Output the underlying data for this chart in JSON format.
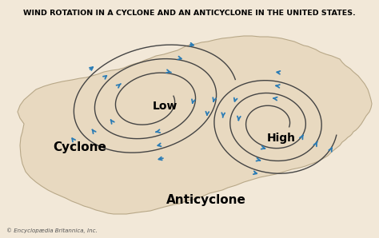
{
  "title": "WIND ROTATION IN A CYCLONE AND AN ANTICYCLONE IN THE UNITED STATES.",
  "title_fontsize": 6.8,
  "background_color": "#f2e8d8",
  "map_color": "#e8d9c0",
  "map_edge_color": "#b8a888",
  "spiral_color": "#444444",
  "arrow_color": "#2b7cb5",
  "text_low": "Low",
  "text_high": "High",
  "text_cyclone": "Cyclone",
  "text_anticyclone": "Anticyclone",
  "credit": "© Encyclopædia Britannica, Inc.",
  "label_fontsize": 9,
  "credit_fontsize": 5
}
